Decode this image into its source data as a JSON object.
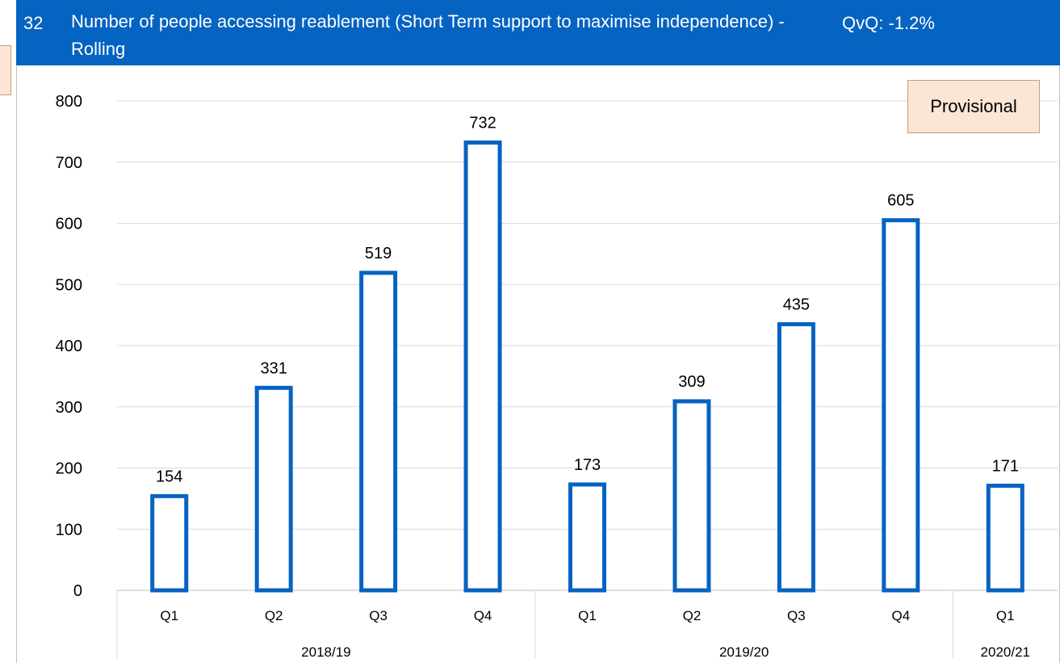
{
  "header": {
    "number": "32",
    "title": "Number of people accessing reablement (Short Term support to maximise independence) - Rolling",
    "qvq": "QvQ: -1.2%"
  },
  "badge": {
    "label": "Provisional"
  },
  "colors": {
    "header_bg": "#0563C1",
    "bar_outline": "#0563C1",
    "badge_bg": "#FBE5D6"
  },
  "chart_data": {
    "type": "bar",
    "categories": [
      "Q1",
      "Q2",
      "Q3",
      "Q4",
      "Q1",
      "Q2",
      "Q3",
      "Q4",
      "Q1"
    ],
    "groups": [
      {
        "label": "2018/19",
        "count": 4
      },
      {
        "label": "2019/20",
        "count": 4
      },
      {
        "label": "2020/21",
        "count": 1
      }
    ],
    "values": [
      154,
      331,
      519,
      732,
      173,
      309,
      435,
      605,
      171
    ],
    "data_labels": [
      "154",
      "331",
      "519",
      "732",
      "173",
      "309",
      "435",
      "605",
      "171"
    ],
    "y_ticks": [
      "0",
      "100",
      "200",
      "300",
      "400",
      "500",
      "600",
      "700",
      "800"
    ],
    "ylim": [
      0,
      800
    ],
    "grid": true,
    "title": "Number of people accessing reablement (Short Term support to maximise independence) - Rolling"
  }
}
